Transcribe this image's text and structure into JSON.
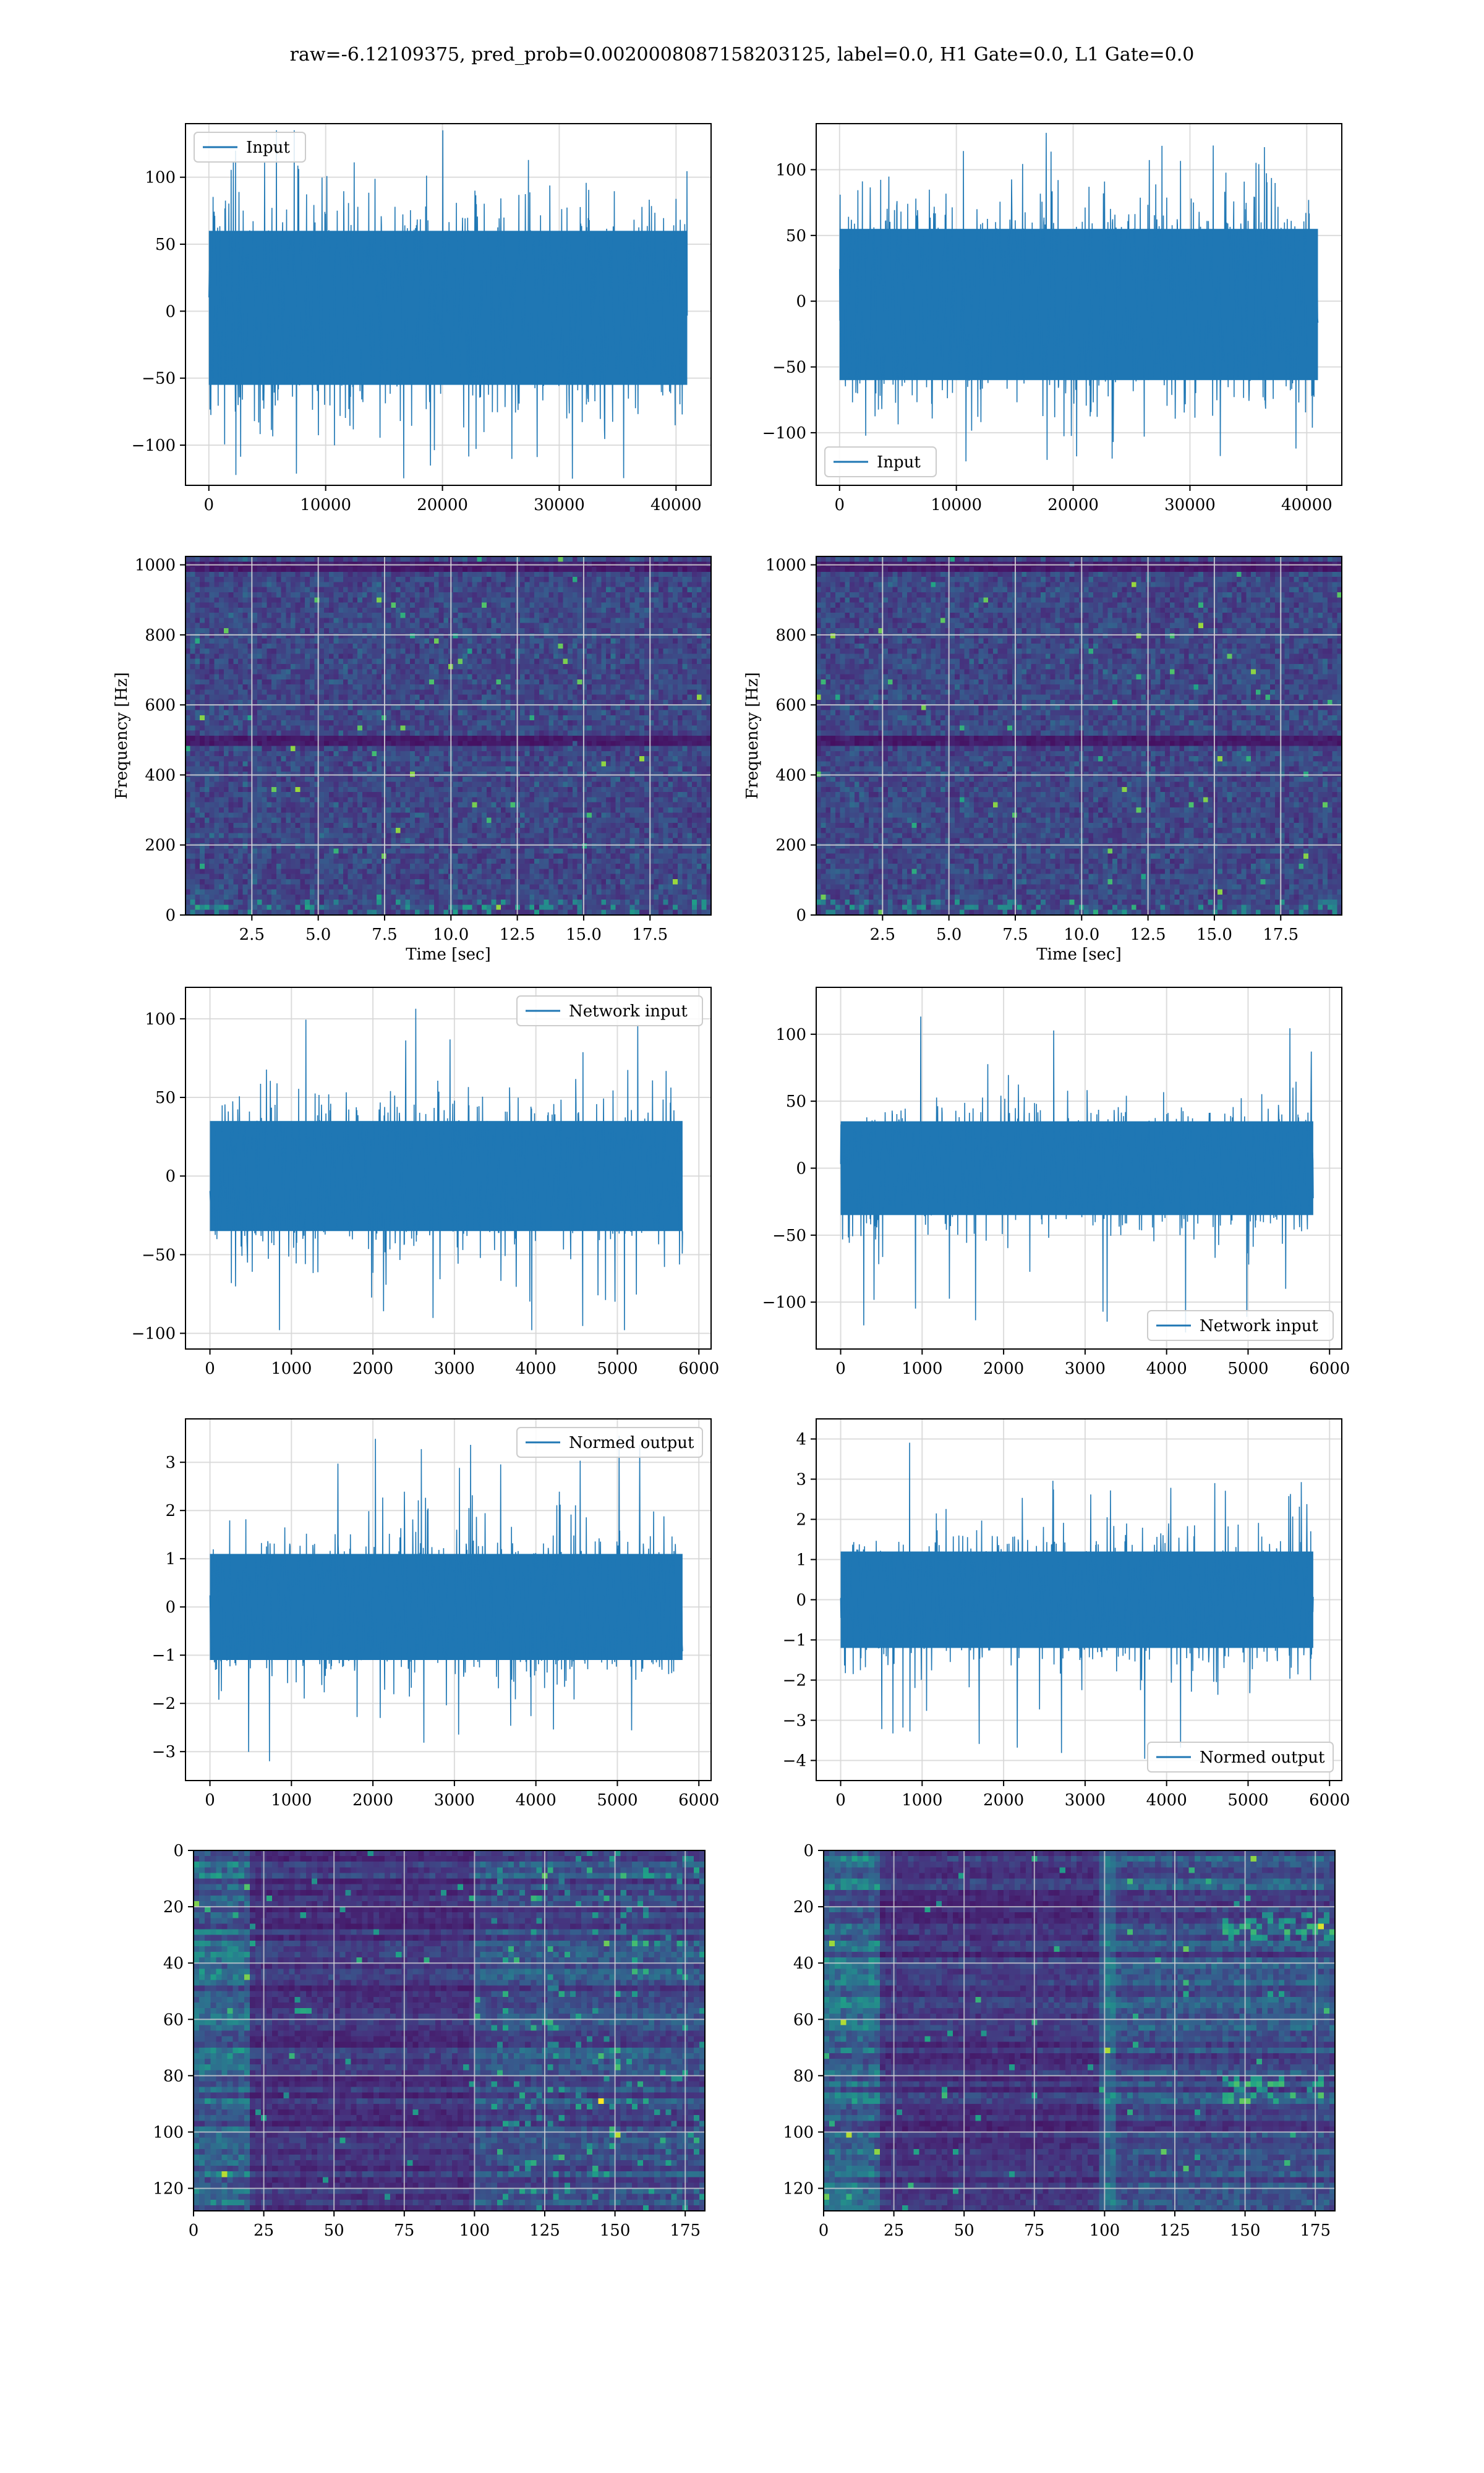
{
  "figure": {
    "suptitle": "raw=-6.12109375, pred_prob=0.0020008087158203125, label=0.0, H1 Gate=0.0, L1 Gate=0.0"
  },
  "colors": {
    "line": "#1f77b4",
    "grid": "#cfcfcf",
    "axes": "#000000",
    "viridis": [
      "#440154",
      "#46327e",
      "#365c8d",
      "#277f8e",
      "#1fa187",
      "#4ac16d",
      "#a0da39",
      "#fde725"
    ]
  },
  "chart_data": [
    {
      "id": "input-h1",
      "type": "line",
      "series": [
        {
          "name": "Input",
          "style": "dense noise, amplitude envelope about ±60 with spikes to ±130"
        }
      ],
      "legend": "upper left",
      "xlim": [
        -2000,
        43000
      ],
      "ylim": [
        -130,
        140
      ],
      "xticks": [
        0,
        10000,
        20000,
        30000,
        40000
      ],
      "yticks": [
        -100,
        -50,
        0,
        50,
        100
      ],
      "x": [
        0,
        40960
      ],
      "band_y": [
        -55,
        60
      ],
      "extreme_y": [
        -125,
        135
      ],
      "grid": true
    },
    {
      "id": "input-l1",
      "type": "line",
      "series": [
        {
          "name": "Input",
          "style": "dense noise, amplitude envelope about ±60 with spikes to ±125"
        }
      ],
      "legend": "lower left",
      "xlim": [
        -2000,
        43000
      ],
      "ylim": [
        -140,
        135
      ],
      "xticks": [
        0,
        10000,
        20000,
        30000,
        40000
      ],
      "yticks": [
        -100,
        -50,
        0,
        50,
        100
      ],
      "x": [
        0,
        40960
      ],
      "band_y": [
        -60,
        55
      ],
      "extreme_y": [
        -128,
        128
      ],
      "grid": true
    },
    {
      "id": "spectrogram-h1",
      "type": "heatmap",
      "xlabel": "Time [sec]",
      "ylabel": "Frequency [Hz]",
      "xlim": [
        0,
        19.8
      ],
      "ylim": [
        0,
        1024
      ],
      "xticks": [
        2.5,
        5.0,
        7.5,
        10.0,
        12.5,
        15.0,
        17.5
      ],
      "xtick_labels": [
        "2.5",
        "5.0",
        "7.5",
        "10.0",
        "12.5",
        "15.0",
        "17.5"
      ],
      "yticks": [
        0,
        200,
        400,
        600,
        800,
        1000
      ],
      "colormap": "viridis",
      "dark_bands_hz": [
        500,
        1000
      ],
      "grid": true
    },
    {
      "id": "spectrogram-l1",
      "type": "heatmap",
      "xlabel": "Time [sec]",
      "ylabel": "Frequency [Hz]",
      "xlim": [
        0,
        19.8
      ],
      "ylim": [
        0,
        1024
      ],
      "xticks": [
        2.5,
        5.0,
        7.5,
        10.0,
        12.5,
        15.0,
        17.5
      ],
      "xtick_labels": [
        "2.5",
        "5.0",
        "7.5",
        "10.0",
        "12.5",
        "15.0",
        "17.5"
      ],
      "yticks": [
        0,
        200,
        400,
        600,
        800,
        1000
      ],
      "colormap": "viridis",
      "dark_bands_hz": [
        500,
        1000
      ],
      "grid": true
    },
    {
      "id": "network-input-h1",
      "type": "line",
      "series": [
        {
          "name": "Network input",
          "style": "noise, envelope about ±40 with spikes to ±110"
        }
      ],
      "legend": "upper right",
      "xlim": [
        -300,
        6150
      ],
      "ylim": [
        -110,
        120
      ],
      "xticks": [
        0,
        1000,
        2000,
        3000,
        4000,
        5000,
        6000
      ],
      "yticks": [
        -100,
        -50,
        0,
        50,
        100
      ],
      "x": [
        0,
        5800
      ],
      "band_y": [
        -35,
        35
      ],
      "extreme_y": [
        -98,
        110
      ],
      "grid": true
    },
    {
      "id": "network-input-l1",
      "type": "line",
      "series": [
        {
          "name": "Network input",
          "style": "noise, envelope about ±40 with spikes to ±120"
        }
      ],
      "legend": "lower right",
      "xlim": [
        -300,
        6150
      ],
      "ylim": [
        -135,
        135
      ],
      "xticks": [
        0,
        1000,
        2000,
        3000,
        4000,
        5000,
        6000
      ],
      "yticks": [
        -100,
        -50,
        0,
        50,
        100
      ],
      "x": [
        0,
        5800
      ],
      "band_y": [
        -35,
        35
      ],
      "extreme_y": [
        -123,
        121
      ],
      "grid": true
    },
    {
      "id": "normed-output-h1",
      "type": "line",
      "series": [
        {
          "name": "Normed output",
          "style": "noise, envelope about ±1.2 with spikes to ±3.5"
        }
      ],
      "legend": "upper right",
      "xlim": [
        -300,
        6150
      ],
      "ylim": [
        -3.6,
        3.9
      ],
      "xticks": [
        0,
        1000,
        2000,
        3000,
        4000,
        5000,
        6000
      ],
      "yticks": [
        -3,
        -2,
        -1,
        0,
        1,
        2,
        3
      ],
      "x": [
        0,
        5800
      ],
      "band_y": [
        -1.1,
        1.1
      ],
      "extreme_y": [
        -3.2,
        3.6
      ],
      "grid": true
    },
    {
      "id": "normed-output-l1",
      "type": "line",
      "series": [
        {
          "name": "Normed output",
          "style": "noise, envelope about ±1.2 with spikes to ±4"
        }
      ],
      "legend": "lower right",
      "xlim": [
        -300,
        6150
      ],
      "ylim": [
        -4.5,
        4.5
      ],
      "xticks": [
        0,
        1000,
        2000,
        3000,
        4000,
        5000,
        6000
      ],
      "yticks": [
        -4,
        -3,
        -2,
        -1,
        0,
        1,
        2,
        3,
        4
      ],
      "x": [
        0,
        5800
      ],
      "band_y": [
        -1.2,
        1.2
      ],
      "extreme_y": [
        -4.0,
        4.0
      ],
      "grid": true
    },
    {
      "id": "feature-map-h1",
      "type": "heatmap",
      "xlim": [
        0,
        182
      ],
      "ylim": [
        128,
        0
      ],
      "xticks": [
        0,
        25,
        50,
        75,
        100,
        125,
        150,
        175
      ],
      "yticks": [
        0,
        20,
        40,
        60,
        80,
        100,
        120
      ],
      "colormap": "viridis",
      "rows": 128,
      "cols": 182,
      "bright_regions": "early columns 0-20 and late columns 105-180 brighter; columns 20-100 dark with horizontal streaks",
      "grid": true
    },
    {
      "id": "feature-map-l1",
      "type": "heatmap",
      "xlim": [
        0,
        182
      ],
      "ylim": [
        128,
        0
      ],
      "xticks": [
        0,
        25,
        50,
        75,
        100,
        125,
        150,
        175
      ],
      "yticks": [
        0,
        20,
        40,
        60,
        80,
        100,
        120
      ],
      "colormap": "viridis",
      "rows": 128,
      "cols": 182,
      "bright_regions": "columns 0-20 bright, vertical edge near column 100, bright features near columns 140-180 at rows 20-30 and 80-90",
      "grid": true
    }
  ]
}
